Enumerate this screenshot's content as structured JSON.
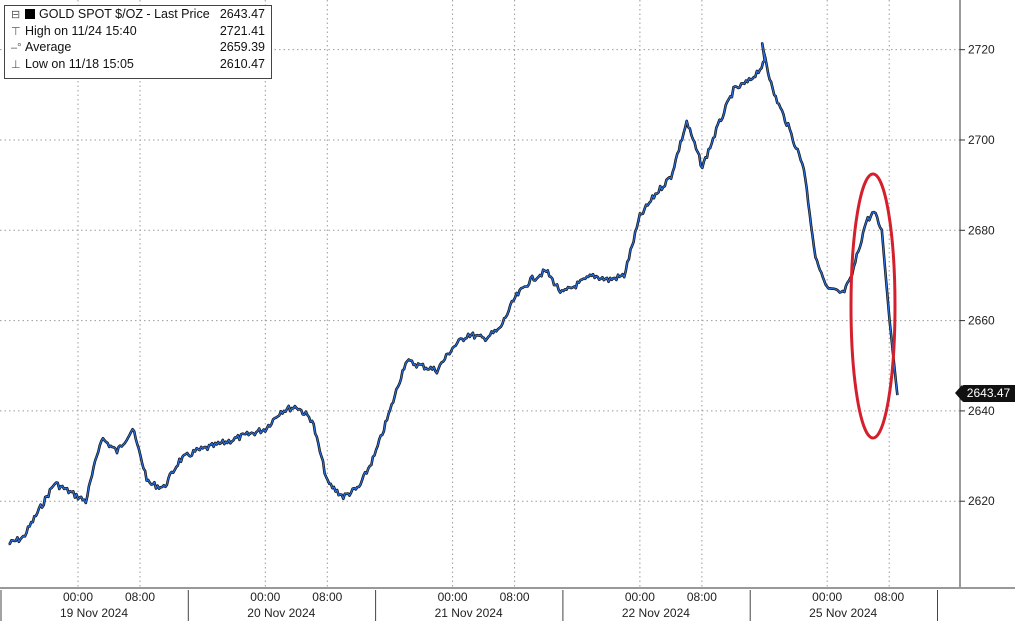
{
  "legend": {
    "title": "GOLD SPOT $/OZ - Last Price",
    "title_value": "2643.47",
    "high_label": "High on 11/24 15:40",
    "high_value": "2721.41",
    "average_label": "Average",
    "average_value": "2659.39",
    "low_label": "Low on 11/18 15:05",
    "low_value": "2610.47"
  },
  "last_price_tag": "2643.47",
  "colors": {
    "line_outline": "#111111",
    "line_main": "#2a6fdb",
    "highlight_ellipse": "#d4202c",
    "grid": "#9a9a9a"
  },
  "chart_data": {
    "type": "line",
    "title": "GOLD SPOT $/OZ - Last Price",
    "xlabel": "",
    "ylabel": "",
    "ylim": [
      2601,
      2731
    ],
    "y_ticks": [
      "2620",
      "2640",
      "2660",
      "2680",
      "2700",
      "2720"
    ],
    "x_tick_labels": [
      "00:00",
      "08:00",
      "00:00",
      "08:00",
      "00:00",
      "08:00",
      "00:00",
      "08:00",
      "00:00",
      "08:00"
    ],
    "date_labels": [
      "19 Nov 2024",
      "20 Nov 2024",
      "21 Nov 2024",
      "22 Nov 2024",
      "25 Nov 2024"
    ],
    "grid": true,
    "legend_position": "top-left",
    "series": [
      {
        "name": "GOLD SPOT $/OZ",
        "points": [
          [
            "2024-11-18 15:05",
            2610.5
          ],
          [
            "2024-11-18 17:00",
            2612
          ],
          [
            "2024-11-18 19:00",
            2618
          ],
          [
            "2024-11-18 21:00",
            2624
          ],
          [
            "2024-11-18 23:00",
            2622
          ],
          [
            "2024-11-19 01:00",
            2620
          ],
          [
            "2024-11-19 03:00",
            2634
          ],
          [
            "2024-11-19 05:00",
            2631
          ],
          [
            "2024-11-19 07:00",
            2636
          ],
          [
            "2024-11-19 09:00",
            2624
          ],
          [
            "2024-11-19 11:00",
            2623
          ],
          [
            "2024-11-19 13:00",
            2629
          ],
          [
            "2024-11-19 15:00",
            2631
          ],
          [
            "2024-11-19 17:00",
            2632
          ],
          [
            "2024-11-20 00:00",
            2636
          ],
          [
            "2024-11-20 02:00",
            2640
          ],
          [
            "2024-11-20 04:00",
            2641
          ],
          [
            "2024-11-20 06:00",
            2638
          ],
          [
            "2024-11-20 08:00",
            2624
          ],
          [
            "2024-11-20 10:00",
            2621
          ],
          [
            "2024-11-20 12:00",
            2623
          ],
          [
            "2024-11-20 14:00",
            2630
          ],
          [
            "2024-11-20 16:00",
            2640
          ],
          [
            "2024-11-20 18:00",
            2651
          ],
          [
            "2024-11-20 20:00",
            2650
          ],
          [
            "2024-11-20 22:00",
            2649
          ],
          [
            "2024-11-21 00:00",
            2654
          ],
          [
            "2024-11-21 02:00",
            2657
          ],
          [
            "2024-11-21 04:00",
            2656
          ],
          [
            "2024-11-21 06:00",
            2658
          ],
          [
            "2024-11-21 08:00",
            2665
          ],
          [
            "2024-11-21 10:00",
            2669
          ],
          [
            "2024-11-21 12:00",
            2671
          ],
          [
            "2024-11-21 14:00",
            2666
          ],
          [
            "2024-11-21 16:00",
            2668
          ],
          [
            "2024-11-21 18:00",
            2670
          ],
          [
            "2024-11-21 20:00",
            2669
          ],
          [
            "2024-11-21 22:00",
            2670
          ],
          [
            "2024-11-22 00:00",
            2683
          ],
          [
            "2024-11-22 02:00",
            2688
          ],
          [
            "2024-11-22 04:00",
            2692
          ],
          [
            "2024-11-22 06:00",
            2704
          ],
          [
            "2024-11-22 08:00",
            2694
          ],
          [
            "2024-11-22 10:00",
            2703
          ],
          [
            "2024-11-22 12:00",
            2711
          ],
          [
            "2024-11-22 14:00",
            2713
          ],
          [
            "2024-11-22 16:00",
            2717
          ],
          [
            "2024-11-24 15:40",
            2721.4
          ],
          [
            "2024-11-24 17:00",
            2711
          ],
          [
            "2024-11-24 19:00",
            2703
          ],
          [
            "2024-11-24 21:00",
            2694
          ],
          [
            "2024-11-24 22:30",
            2674
          ],
          [
            "2024-11-25 00:00",
            2667
          ],
          [
            "2024-11-25 02:00",
            2666
          ],
          [
            "2024-11-25 03:00",
            2669
          ],
          [
            "2024-11-25 05:00",
            2682
          ],
          [
            "2024-11-25 06:00",
            2684
          ],
          [
            "2024-11-25 07:00",
            2680
          ],
          [
            "2024-11-25 08:00",
            2660
          ],
          [
            "2024-11-25 09:00",
            2643.5
          ]
        ]
      }
    ]
  }
}
